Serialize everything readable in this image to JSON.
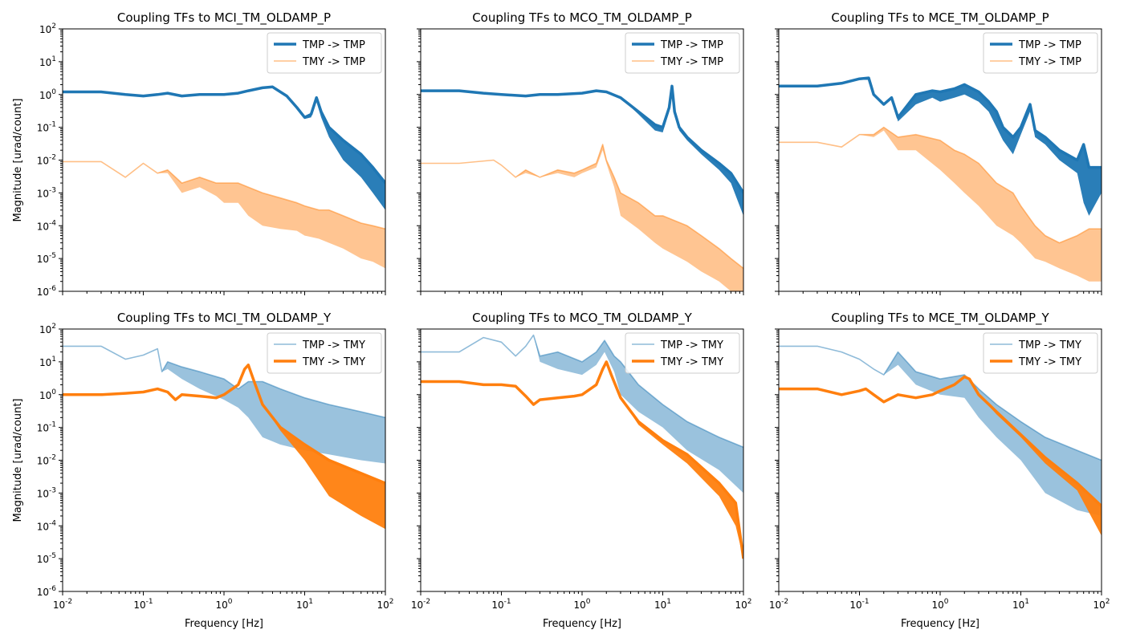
{
  "figure": {
    "ylabel": "Magnitude [urad/count]",
    "xlabel": "Frequency [Hz]",
    "colors": {
      "tmp": "#1f77b4",
      "tmy": "#ff7f0e"
    }
  },
  "chart_data": [
    {
      "type": "line",
      "title": "Coupling TFs to MCI_TM_OLDAMP_P",
      "xscale": "log",
      "yscale": "log",
      "xlim": [
        0.01,
        100
      ],
      "ylim": [
        1e-06,
        100
      ],
      "xticks": [
        "10^-2",
        "10^-1",
        "10^0",
        "10^1",
        "10^2"
      ],
      "yticks": [
        "10^-6",
        "10^-5",
        "10^-4",
        "10^-3",
        "10^-2",
        "10^-1",
        "10^0",
        "10^1",
        "10^2"
      ],
      "legend": "top-right",
      "series": [
        {
          "name": "TMP -> TMP",
          "color": "#1f77b4",
          "style": "thick",
          "x": [
            0.01,
            0.03,
            0.06,
            0.1,
            0.15,
            0.2,
            0.3,
            0.5,
            0.8,
            1.0,
            1.5,
            2.0,
            3.0,
            4.0,
            6.0,
            8.0,
            10,
            12,
            14,
            16,
            20,
            30,
            50,
            70,
            100
          ],
          "y": [
            1.2,
            1.2,
            1.0,
            0.9,
            1.0,
            1.1,
            0.9,
            1.0,
            1.0,
            1.0,
            1.1,
            1.3,
            1.6,
            1.7,
            0.9,
            0.4,
            0.2,
            0.25,
            0.8,
            0.3,
            0.1,
            0.04,
            0.015,
            0.006,
            0.002
          ],
          "floor": [
            1.2,
            1.2,
            1.0,
            0.9,
            1.0,
            1.1,
            0.9,
            1.0,
            1.0,
            1.0,
            1.1,
            1.3,
            1.6,
            1.7,
            0.9,
            0.4,
            0.18,
            0.2,
            0.6,
            0.2,
            0.05,
            0.01,
            0.003,
            0.001,
            0.0003
          ]
        },
        {
          "name": "TMY -> TMP",
          "color": "#ff7f0e",
          "style": "faint",
          "x": [
            0.01,
            0.03,
            0.06,
            0.1,
            0.15,
            0.2,
            0.3,
            0.5,
            0.8,
            1.0,
            1.5,
            2.0,
            3.0,
            5.0,
            8.0,
            10,
            15,
            20,
            30,
            50,
            70,
            100
          ],
          "y": [
            0.009,
            0.009,
            0.003,
            0.008,
            0.004,
            0.005,
            0.002,
            0.003,
            0.002,
            0.002,
            0.002,
            0.0015,
            0.001,
            0.0007,
            0.0005,
            0.0004,
            0.0003,
            0.0003,
            0.0002,
            0.00012,
            0.0001,
            8e-05
          ],
          "floor": [
            0.009,
            0.009,
            0.003,
            0.008,
            0.004,
            0.004,
            0.001,
            0.0015,
            0.0008,
            0.0005,
            0.0005,
            0.0002,
            0.0001,
            8e-05,
            7e-05,
            5e-05,
            4e-05,
            3e-05,
            2e-05,
            1e-05,
            8e-06,
            5e-06
          ]
        }
      ]
    },
    {
      "type": "line",
      "title": "Coupling TFs to MCO_TM_OLDAMP_P",
      "xscale": "log",
      "yscale": "log",
      "xlim": [
        0.01,
        100
      ],
      "ylim": [
        1e-06,
        100
      ],
      "xticks": [
        "10^-2",
        "10^-1",
        "10^0",
        "10^1",
        "10^2"
      ],
      "yticks": [
        "10^-6",
        "10^-5",
        "10^-4",
        "10^-3",
        "10^-2",
        "10^-1",
        "10^0",
        "10^1",
        "10^2"
      ],
      "legend": "top-right",
      "series": [
        {
          "name": "TMP -> TMP",
          "color": "#1f77b4",
          "style": "thick",
          "x": [
            0.01,
            0.03,
            0.06,
            0.1,
            0.2,
            0.3,
            0.5,
            1.0,
            1.5,
            2.0,
            3.0,
            5.0,
            8.0,
            10,
            12,
            13,
            14,
            16,
            20,
            30,
            50,
            70,
            100
          ],
          "y": [
            1.3,
            1.3,
            1.1,
            1.0,
            0.9,
            1.0,
            1.0,
            1.1,
            1.3,
            1.2,
            0.8,
            0.3,
            0.12,
            0.1,
            0.4,
            1.8,
            0.3,
            0.1,
            0.05,
            0.02,
            0.008,
            0.004,
            0.001
          ],
          "floor": [
            1.3,
            1.3,
            1.1,
            1.0,
            0.9,
            1.0,
            1.0,
            1.1,
            1.3,
            1.2,
            0.8,
            0.25,
            0.08,
            0.07,
            0.3,
            1.5,
            0.25,
            0.08,
            0.04,
            0.015,
            0.005,
            0.002,
            0.0002
          ]
        },
        {
          "name": "TMY -> TMP",
          "color": "#ff7f0e",
          "style": "faint",
          "x": [
            0.01,
            0.03,
            0.08,
            0.1,
            0.15,
            0.2,
            0.3,
            0.5,
            0.8,
            1.0,
            1.5,
            1.8,
            2.0,
            2.5,
            3.0,
            5.0,
            8.0,
            10,
            20,
            30,
            50,
            70,
            100
          ],
          "y": [
            0.008,
            0.008,
            0.01,
            0.007,
            0.003,
            0.005,
            0.003,
            0.005,
            0.004,
            0.005,
            0.008,
            0.03,
            0.01,
            0.003,
            0.001,
            0.0005,
            0.0002,
            0.0002,
            0.0001,
            5e-05,
            2e-05,
            1e-05,
            5e-06
          ],
          "floor": [
            0.008,
            0.008,
            0.01,
            0.007,
            0.003,
            0.004,
            0.003,
            0.004,
            0.003,
            0.004,
            0.006,
            0.02,
            0.008,
            0.0015,
            0.0002,
            8e-05,
            3e-05,
            2e-05,
            8e-06,
            4e-06,
            2e-06,
            1e-06,
            8e-07
          ]
        }
      ]
    },
    {
      "type": "line",
      "title": "Coupling TFs to MCE_TM_OLDAMP_P",
      "xscale": "log",
      "yscale": "log",
      "xlim": [
        0.01,
        100
      ],
      "ylim": [
        1e-06,
        100
      ],
      "xticks": [
        "10^-2",
        "10^-1",
        "10^0",
        "10^1",
        "10^2"
      ],
      "yticks": [
        "10^-6",
        "10^-5",
        "10^-4",
        "10^-3",
        "10^-2",
        "10^-1",
        "10^0",
        "10^1",
        "10^2"
      ],
      "legend": "top-right",
      "series": [
        {
          "name": "TMP -> TMP",
          "color": "#1f77b4",
          "style": "thick",
          "x": [
            0.01,
            0.03,
            0.06,
            0.1,
            0.13,
            0.15,
            0.2,
            0.25,
            0.3,
            0.5,
            0.8,
            1.0,
            1.5,
            2.0,
            3.0,
            4.0,
            5.0,
            6.0,
            8.0,
            10,
            13,
            15,
            20,
            30,
            50,
            60,
            70,
            100
          ],
          "y": [
            1.8,
            1.8,
            2.2,
            3.0,
            3.2,
            1.0,
            0.5,
            0.8,
            0.2,
            1.0,
            1.3,
            1.2,
            1.5,
            2.0,
            1.2,
            0.6,
            0.3,
            0.1,
            0.05,
            0.1,
            0.5,
            0.08,
            0.05,
            0.02,
            0.01,
            0.03,
            0.006,
            0.006
          ],
          "floor": [
            1.8,
            1.8,
            2.2,
            3.0,
            3.2,
            1.0,
            0.5,
            0.7,
            0.15,
            0.5,
            0.8,
            0.6,
            0.8,
            1.0,
            0.6,
            0.3,
            0.1,
            0.04,
            0.015,
            0.06,
            0.3,
            0.05,
            0.03,
            0.01,
            0.004,
            0.0005,
            0.0002,
            0.001
          ]
        },
        {
          "name": "TMY -> TMP",
          "color": "#ff7f0e",
          "style": "faint",
          "x": [
            0.01,
            0.03,
            0.06,
            0.1,
            0.15,
            0.2,
            0.3,
            0.5,
            1.0,
            1.5,
            2.0,
            3.0,
            5.0,
            8.0,
            10,
            15,
            20,
            30,
            50,
            70,
            100
          ],
          "y": [
            0.035,
            0.035,
            0.025,
            0.06,
            0.06,
            0.1,
            0.05,
            0.06,
            0.04,
            0.02,
            0.015,
            0.008,
            0.002,
            0.001,
            0.0004,
            0.0001,
            5e-05,
            3e-05,
            5e-05,
            8e-05,
            8e-05
          ],
          "floor": [
            0.035,
            0.035,
            0.025,
            0.06,
            0.05,
            0.08,
            0.02,
            0.02,
            0.005,
            0.002,
            0.001,
            0.0004,
            0.0001,
            5e-05,
            3e-05,
            1e-05,
            8e-06,
            5e-06,
            3e-06,
            2e-06,
            2e-06
          ]
        }
      ]
    },
    {
      "type": "line",
      "title": "Coupling TFs to MCI_TM_OLDAMP_Y",
      "xscale": "log",
      "yscale": "log",
      "xlim": [
        0.01,
        100
      ],
      "ylim": [
        1e-06,
        100
      ],
      "xticks": [
        "10^-2",
        "10^-1",
        "10^0",
        "10^1",
        "10^2"
      ],
      "yticks": [
        "10^-6",
        "10^-5",
        "10^-4",
        "10^-3",
        "10^-2",
        "10^-1",
        "10^0",
        "10^1",
        "10^2"
      ],
      "legend": "top-right",
      "series": [
        {
          "name": "TMP -> TMY",
          "color": "#1f77b4",
          "style": "faint",
          "x": [
            0.01,
            0.03,
            0.06,
            0.1,
            0.15,
            0.17,
            0.2,
            0.3,
            0.5,
            1.0,
            1.5,
            2.0,
            3.0,
            5.0,
            10,
            20,
            50,
            100
          ],
          "y": [
            30,
            30,
            12,
            16,
            25,
            5,
            10,
            7,
            5,
            3,
            1.5,
            2.5,
            2.5,
            1.5,
            0.8,
            0.5,
            0.3,
            0.2
          ],
          "floor": [
            30,
            30,
            12,
            16,
            25,
            5,
            6,
            3,
            1.5,
            0.7,
            0.4,
            0.2,
            0.05,
            0.03,
            0.02,
            0.015,
            0.01,
            0.008
          ]
        },
        {
          "name": "TMY -> TMY",
          "color": "#ff7f0e",
          "style": "thick",
          "x": [
            0.01,
            0.03,
            0.06,
            0.1,
            0.15,
            0.2,
            0.25,
            0.3,
            0.5,
            0.8,
            1.0,
            1.5,
            1.8,
            2.0,
            2.3,
            3.0,
            5.0,
            10,
            20,
            50,
            100
          ],
          "y": [
            1.0,
            1.0,
            1.1,
            1.2,
            1.5,
            1.2,
            0.7,
            1.0,
            0.9,
            0.8,
            1.0,
            2.0,
            6.0,
            8.0,
            3.0,
            0.5,
            0.1,
            0.03,
            0.01,
            0.004,
            0.002
          ],
          "floor": [
            1.0,
            1.0,
            1.1,
            1.2,
            1.5,
            1.2,
            0.7,
            1.0,
            0.9,
            0.8,
            1.0,
            2.0,
            6.0,
            8.0,
            3.0,
            0.5,
            0.08,
            0.01,
            0.0008,
            0.0002,
            8e-05
          ]
        }
      ]
    },
    {
      "type": "line",
      "title": "Coupling TFs to MCO_TM_OLDAMP_Y",
      "xscale": "log",
      "yscale": "log",
      "xlim": [
        0.01,
        100
      ],
      "ylim": [
        1e-06,
        100
      ],
      "xticks": [
        "10^-2",
        "10^-1",
        "10^0",
        "10^1",
        "10^2"
      ],
      "yticks": [
        "10^-6",
        "10^-5",
        "10^-4",
        "10^-3",
        "10^-2",
        "10^-1",
        "10^0",
        "10^1",
        "10^2"
      ],
      "legend": "top-right",
      "series": [
        {
          "name": "TMP -> TMY",
          "color": "#1f77b4",
          "style": "faint",
          "x": [
            0.01,
            0.03,
            0.06,
            0.1,
            0.15,
            0.2,
            0.25,
            0.3,
            0.5,
            1.0,
            1.5,
            1.9,
            2.5,
            3.0,
            5.0,
            10,
            20,
            50,
            100
          ],
          "y": [
            20,
            20,
            55,
            40,
            15,
            30,
            65,
            15,
            20,
            10,
            20,
            45,
            15,
            10,
            2.0,
            0.5,
            0.15,
            0.05,
            0.025
          ],
          "floor": [
            20,
            20,
            55,
            40,
            15,
            30,
            65,
            10,
            6,
            4,
            8,
            20,
            5,
            1.0,
            0.3,
            0.1,
            0.02,
            0.005,
            0.001
          ]
        },
        {
          "name": "TMY -> TMY",
          "color": "#ff7f0e",
          "style": "thick",
          "x": [
            0.01,
            0.03,
            0.06,
            0.1,
            0.15,
            0.2,
            0.25,
            0.3,
            0.5,
            0.8,
            1.0,
            1.5,
            1.8,
            2.0,
            2.3,
            3.0,
            5.0,
            10,
            20,
            50,
            80,
            100
          ],
          "y": [
            2.5,
            2.5,
            2.0,
            2.0,
            1.8,
            0.9,
            0.5,
            0.7,
            0.8,
            0.9,
            1.0,
            2.0,
            6.0,
            10.0,
            4.0,
            0.8,
            0.15,
            0.04,
            0.015,
            0.002,
            0.0005,
            1e-05
          ],
          "floor": [
            2.5,
            2.5,
            2.0,
            2.0,
            1.8,
            0.9,
            0.5,
            0.7,
            0.8,
            0.9,
            1.0,
            2.0,
            6.0,
            10.0,
            4.0,
            0.8,
            0.12,
            0.03,
            0.008,
            0.0008,
            0.0001,
            1e-05
          ]
        }
      ]
    },
    {
      "type": "line",
      "title": "Coupling TFs to MCE_TM_OLDAMP_Y",
      "xscale": "log",
      "yscale": "log",
      "xlim": [
        0.01,
        100
      ],
      "ylim": [
        1e-06,
        100
      ],
      "xticks": [
        "10^-2",
        "10^-1",
        "10^0",
        "10^1",
        "10^2"
      ],
      "yticks": [
        "10^-6",
        "10^-5",
        "10^-4",
        "10^-3",
        "10^-2",
        "10^-1",
        "10^0",
        "10^1",
        "10^2"
      ],
      "legend": "top-right",
      "series": [
        {
          "name": "TMP -> TMY",
          "color": "#1f77b4",
          "style": "faint",
          "x": [
            0.01,
            0.03,
            0.06,
            0.1,
            0.15,
            0.2,
            0.3,
            0.5,
            1.0,
            2.0,
            3.0,
            5.0,
            10,
            20,
            50,
            100
          ],
          "y": [
            30,
            30,
            20,
            12,
            6,
            4,
            20,
            5,
            3,
            4,
            1.5,
            0.5,
            0.15,
            0.05,
            0.02,
            0.01
          ],
          "floor": [
            30,
            30,
            20,
            12,
            6,
            4,
            8,
            2,
            1,
            0.8,
            0.2,
            0.05,
            0.01,
            0.001,
            0.0003,
            0.0002
          ]
        },
        {
          "name": "TMY -> TMY",
          "color": "#ff7f0e",
          "style": "thick",
          "x": [
            0.01,
            0.03,
            0.06,
            0.1,
            0.12,
            0.15,
            0.2,
            0.3,
            0.5,
            0.8,
            1.0,
            1.5,
            2.0,
            2.3,
            3.0,
            5.0,
            10,
            20,
            50,
            100
          ],
          "y": [
            1.5,
            1.5,
            1.0,
            1.3,
            1.5,
            1.0,
            0.6,
            1.0,
            0.8,
            1.0,
            1.3,
            2.0,
            3.5,
            3.0,
            1.0,
            0.3,
            0.06,
            0.012,
            0.002,
            0.0004
          ],
          "floor": [
            1.5,
            1.5,
            1.0,
            1.3,
            1.5,
            1.0,
            0.6,
            1.0,
            0.8,
            1.0,
            1.3,
            2.0,
            3.5,
            3.0,
            1.0,
            0.25,
            0.05,
            0.008,
            0.0012,
            5e-05
          ]
        }
      ]
    }
  ]
}
